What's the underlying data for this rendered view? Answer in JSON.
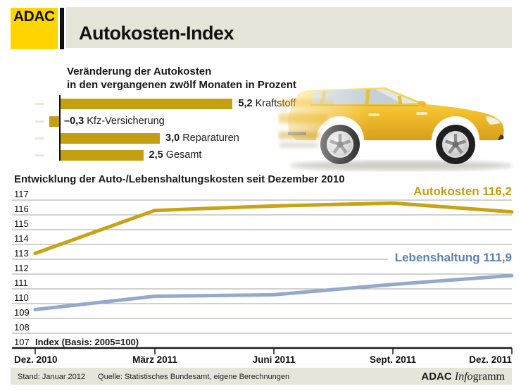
{
  "header": {
    "logo": "ADAC",
    "title": "Autokosten-Index"
  },
  "bar_chart": {
    "title_line1": "Veränderung der Autokosten",
    "title_line2": "in den vergangenen zwölf Monaten in Prozent",
    "bars": [
      {
        "value_label": "5,2",
        "name": "Kraftstoff"
      },
      {
        "value_label": "–0,3",
        "name": "Kfz-Versicherung"
      },
      {
        "value_label": "3,0",
        "name": "Reparaturen"
      },
      {
        "value_label": "2,5",
        "name": "Gesamt"
      }
    ]
  },
  "line_chart": {
    "title": "Entwicklung der Auto-/Lebenshaltungskosten seit Dezember 2010",
    "index_note": "Index (Basis: 2005=100)",
    "legend_autokosten": "Autokosten 116,2",
    "legend_lebenshaltung": "Lebenshaltung 111,9",
    "y_ticks": [
      117,
      116,
      115,
      114,
      113,
      112,
      111,
      110,
      109,
      108,
      107
    ],
    "x_ticks": [
      "Dez. 2010",
      "März 2011",
      "Juni 2011",
      "Sept. 2011",
      "Dez. 2011"
    ]
  },
  "chart_data": [
    {
      "type": "bar",
      "orientation": "horizontal",
      "title": "Veränderung der Autokosten in den vergangenen zwölf Monaten in Prozent",
      "categories": [
        "Kraftstoff",
        "Kfz-Versicherung",
        "Reparaturen",
        "Gesamt"
      ],
      "values": [
        5.2,
        -0.3,
        3.0,
        2.5
      ],
      "unit": "percent",
      "bar_color": "#C2A011"
    },
    {
      "type": "line",
      "title": "Entwicklung der Auto-/Lebenshaltungskosten seit Dezember 2010",
      "x": [
        "Dez. 2010",
        "März 2011",
        "Juni 2011",
        "Sept. 2011",
        "Dez. 2011"
      ],
      "series": [
        {
          "name": "Autokosten",
          "values": [
            113.4,
            116.3,
            116.6,
            116.8,
            116.2
          ],
          "end_label": "Autokosten 116,2",
          "color": "#C8A315"
        },
        {
          "name": "Lebenshaltung",
          "values": [
            109.6,
            110.5,
            110.6,
            111.3,
            111.9
          ],
          "end_label": "Lebenshaltung 111,9",
          "color": "#93AACD"
        }
      ],
      "ylim": [
        107,
        117
      ],
      "ylabel": "Index (Basis: 2005=100)",
      "grid": true,
      "legend_position": "right-inline"
    }
  ],
  "footer": {
    "stand": "Stand: Januar 2012",
    "quelle": "Quelle: Statistisches Bundesamt, eigene Berechnungen",
    "brand_bold": "ADAC",
    "brand_italic": "Info",
    "brand_rest": "gramm"
  },
  "colors": {
    "adac_yellow": "#FFD500",
    "banner_beige": "#E7E4D9",
    "bar_gold": "#C2A011",
    "line_gold": "#C8A315",
    "line_blue": "#93AACD",
    "legend_gold_text": "#C49D10",
    "legend_blue_text": "#5E81AF",
    "grid_gray": "#A3A39B",
    "axis_black": "#1A1A1A"
  }
}
